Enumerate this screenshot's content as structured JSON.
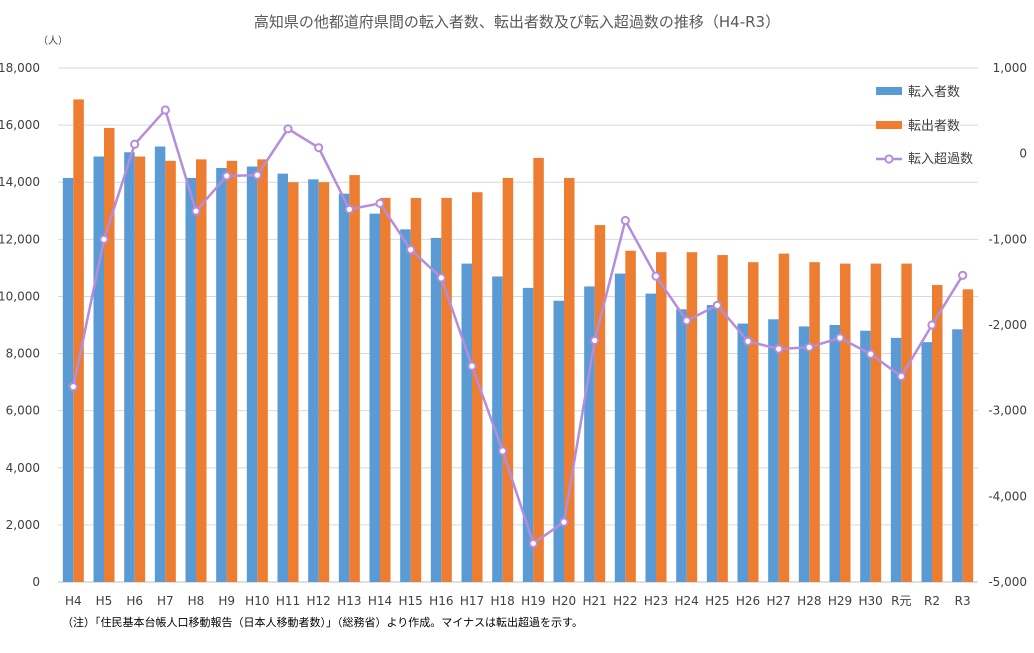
{
  "chart_data": {
    "type": "bar",
    "title": "高知県の他都道府県間の転入者数、転出者数及び転入超過数の推移（H4-R3）",
    "y_unit": "（人）",
    "categories": [
      "H4",
      "H5",
      "H6",
      "H7",
      "H8",
      "H9",
      "H10",
      "H11",
      "H12",
      "H13",
      "H14",
      "H15",
      "H16",
      "H17",
      "H18",
      "H19",
      "H20",
      "H21",
      "H22",
      "H23",
      "H24",
      "H25",
      "H26",
      "H27",
      "H28",
      "H29",
      "H30",
      "R元",
      "R2",
      "R3"
    ],
    "ylim": [
      0,
      18000
    ],
    "y_ticks": [
      "0",
      "2,000",
      "4,000",
      "6,000",
      "8,000",
      "10,000",
      "12,000",
      "14,000",
      "16,000",
      "18,000"
    ],
    "y2lim": [
      -5000,
      1000
    ],
    "y2_ticks": [
      "-5,000",
      "-4,000",
      "-3,000",
      "-2,000",
      "-1,000",
      "0",
      "1,000"
    ],
    "grid": true,
    "legend_position": "top-right",
    "series": [
      {
        "name": "転入者数",
        "type": "bar",
        "axis": "left",
        "color": "#5B9BD5",
        "values": [
          14150,
          14900,
          15050,
          15250,
          14150,
          14500,
          14550,
          14300,
          14100,
          13600,
          12900,
          12350,
          12050,
          11150,
          10700,
          10300,
          9850,
          10350,
          10800,
          10100,
          9550,
          9700,
          9050,
          9200,
          8950,
          9000,
          8800,
          8550,
          8400,
          8850
        ]
      },
      {
        "name": "転出者数",
        "type": "bar",
        "axis": "left",
        "color": "#ED7D31",
        "values": [
          16900,
          15900,
          14900,
          14750,
          14800,
          14750,
          14800,
          14000,
          14000,
          14250,
          13450,
          13450,
          13450,
          13650,
          14150,
          14850,
          14150,
          12500,
          11600,
          11550,
          11550,
          11450,
          11200,
          11500,
          11200,
          11150,
          11150,
          11150,
          10400,
          10250
        ]
      },
      {
        "name": "転入超過数",
        "type": "line",
        "axis": "right",
        "color": "#B48DDD",
        "values": [
          -2720,
          -1000,
          110,
          510,
          -670,
          -260,
          -250,
          290,
          70,
          -650,
          -580,
          -1120,
          -1450,
          -2480,
          -3470,
          -4550,
          -4300,
          -2180,
          -780,
          -1430,
          -1950,
          -1770,
          -2190,
          -2280,
          -2260,
          -2150,
          -2340,
          -2600,
          -2000,
          -1420
        ]
      }
    ]
  },
  "note": "（注）「住民基本台帳人口移動報告（日本人移動者数）」（総務省）より作成。マイナスは転出超過を示す。"
}
